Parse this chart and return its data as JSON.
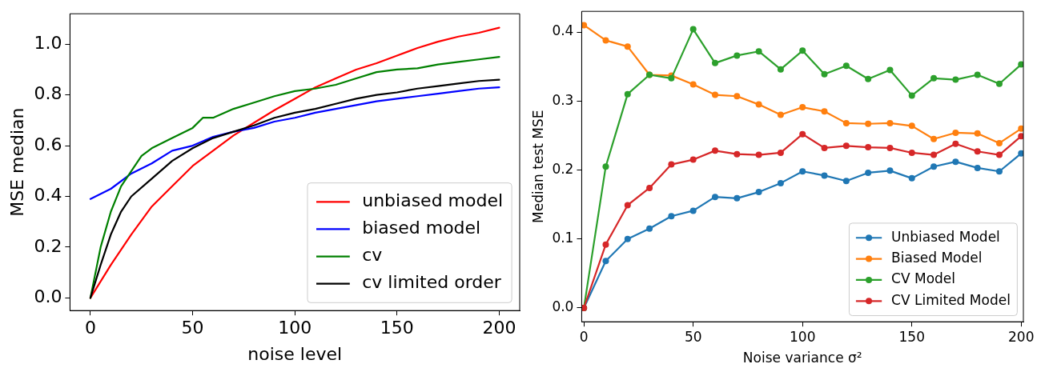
{
  "chart_data": [
    {
      "type": "line",
      "xlabel": "noise level",
      "ylabel": "MSE median",
      "xlim": [
        -10,
        210
      ],
      "ylim": [
        -0.05,
        1.12
      ],
      "xticks": [
        0,
        50,
        100,
        150,
        200
      ],
      "yticks": [
        {
          "value": 0,
          "label": "0.0"
        },
        {
          "value": 0.2,
          "label": "0.2"
        },
        {
          "value": 0.4,
          "label": "0.4"
        },
        {
          "value": 0.6,
          "label": "0.6"
        },
        {
          "value": 0.8,
          "label": "0.8"
        },
        {
          "value": 1,
          "label": "1.0"
        }
      ],
      "grid": false,
      "legend": "bottom right",
      "marker": "none",
      "line_style": "solid",
      "series": [
        {
          "name": "unbiased model",
          "color": "#ff0000",
          "x": [
            0,
            10,
            20,
            30,
            40,
            50,
            60,
            70,
            80,
            90,
            100,
            110,
            120,
            130,
            140,
            150,
            160,
            170,
            180,
            190,
            200
          ],
          "values": [
            0,
            0.13,
            0.25,
            0.36,
            0.44,
            0.52,
            0.58,
            0.64,
            0.69,
            0.74,
            0.785,
            0.83,
            0.865,
            0.9,
            0.925,
            0.955,
            0.985,
            1.01,
            1.03,
            1.045,
            1.065
          ]
        },
        {
          "name": "biased model",
          "color": "#0000ff",
          "x": [
            0,
            10,
            20,
            30,
            40,
            50,
            60,
            70,
            80,
            90,
            100,
            110,
            120,
            130,
            140,
            150,
            160,
            170,
            180,
            190,
            200
          ],
          "values": [
            0.39,
            0.43,
            0.49,
            0.53,
            0.58,
            0.6,
            0.635,
            0.655,
            0.67,
            0.695,
            0.71,
            0.73,
            0.745,
            0.76,
            0.775,
            0.785,
            0.795,
            0.805,
            0.815,
            0.825,
            0.83
          ]
        },
        {
          "name": "cv",
          "color": "#008000",
          "x": [
            0,
            5,
            10,
            15,
            20,
            25,
            30,
            40,
            50,
            55,
            60,
            70,
            80,
            90,
            100,
            110,
            120,
            130,
            140,
            150,
            160,
            170,
            180,
            190,
            200
          ],
          "values": [
            0,
            0.2,
            0.34,
            0.44,
            0.5,
            0.56,
            0.59,
            0.63,
            0.67,
            0.71,
            0.71,
            0.745,
            0.77,
            0.795,
            0.815,
            0.825,
            0.84,
            0.865,
            0.89,
            0.9,
            0.905,
            0.92,
            0.93,
            0.94,
            0.95
          ]
        },
        {
          "name": "cv limited order",
          "color": "#000000",
          "x": [
            0,
            5,
            10,
            15,
            20,
            30,
            40,
            50,
            60,
            70,
            80,
            90,
            100,
            110,
            120,
            130,
            140,
            150,
            160,
            170,
            180,
            190,
            200
          ],
          "values": [
            0,
            0.13,
            0.25,
            0.34,
            0.4,
            0.47,
            0.54,
            0.59,
            0.63,
            0.655,
            0.68,
            0.71,
            0.73,
            0.745,
            0.765,
            0.785,
            0.8,
            0.81,
            0.825,
            0.835,
            0.845,
            0.855,
            0.86
          ]
        }
      ]
    },
    {
      "type": "line",
      "xlabel": "Noise variance σ²",
      "ylabel": "Median test MSE",
      "xlim": [
        -1,
        201
      ],
      "ylim": [
        -0.02,
        0.43
      ],
      "xticks": [
        0,
        50,
        100,
        150,
        200
      ],
      "yticks": [
        {
          "value": 0,
          "label": "0.0"
        },
        {
          "value": 0.1,
          "label": "0.1"
        },
        {
          "value": 0.2,
          "label": "0.2"
        },
        {
          "value": 0.3,
          "label": "0.3"
        },
        {
          "value": 0.4,
          "label": "0.4"
        }
      ],
      "grid": false,
      "legend": "bottom right",
      "marker": "circle",
      "line_style": "solid",
      "x": [
        0,
        10,
        20,
        30,
        40,
        50,
        60,
        70,
        80,
        90,
        100,
        110,
        120,
        130,
        140,
        150,
        160,
        170,
        180,
        190,
        200
      ],
      "series": [
        {
          "name": "Unbiased Model",
          "color": "#1f77b4",
          "values": [
            0,
            0.068,
            0.1,
            0.115,
            0.133,
            0.141,
            0.161,
            0.159,
            0.168,
            0.181,
            0.198,
            0.192,
            0.184,
            0.196,
            0.199,
            0.188,
            0.205,
            0.212,
            0.203,
            0.198,
            0.224
          ]
        },
        {
          "name": "Biased Model",
          "color": "#ff7f0e",
          "values": [
            0.41,
            0.388,
            0.379,
            0.338,
            0.337,
            0.324,
            0.309,
            0.307,
            0.295,
            0.28,
            0.291,
            0.285,
            0.268,
            0.267,
            0.268,
            0.264,
            0.245,
            0.254,
            0.253,
            0.239,
            0.26
          ]
        },
        {
          "name": "CV Model",
          "color": "#2ca02c",
          "values": [
            0,
            0.205,
            0.31,
            0.338,
            0.333,
            0.404,
            0.355,
            0.366,
            0.372,
            0.346,
            0.373,
            0.339,
            0.351,
            0.332,
            0.345,
            0.308,
            0.333,
            0.331,
            0.338,
            0.325,
            0.353
          ]
        },
        {
          "name": "CV Limited Model",
          "color": "#d62728",
          "values": [
            0,
            0.092,
            0.149,
            0.174,
            0.208,
            0.215,
            0.228,
            0.223,
            0.222,
            0.225,
            0.252,
            0.232,
            0.235,
            0.233,
            0.232,
            0.225,
            0.222,
            0.238,
            0.227,
            0.222,
            0.249
          ]
        }
      ]
    }
  ]
}
